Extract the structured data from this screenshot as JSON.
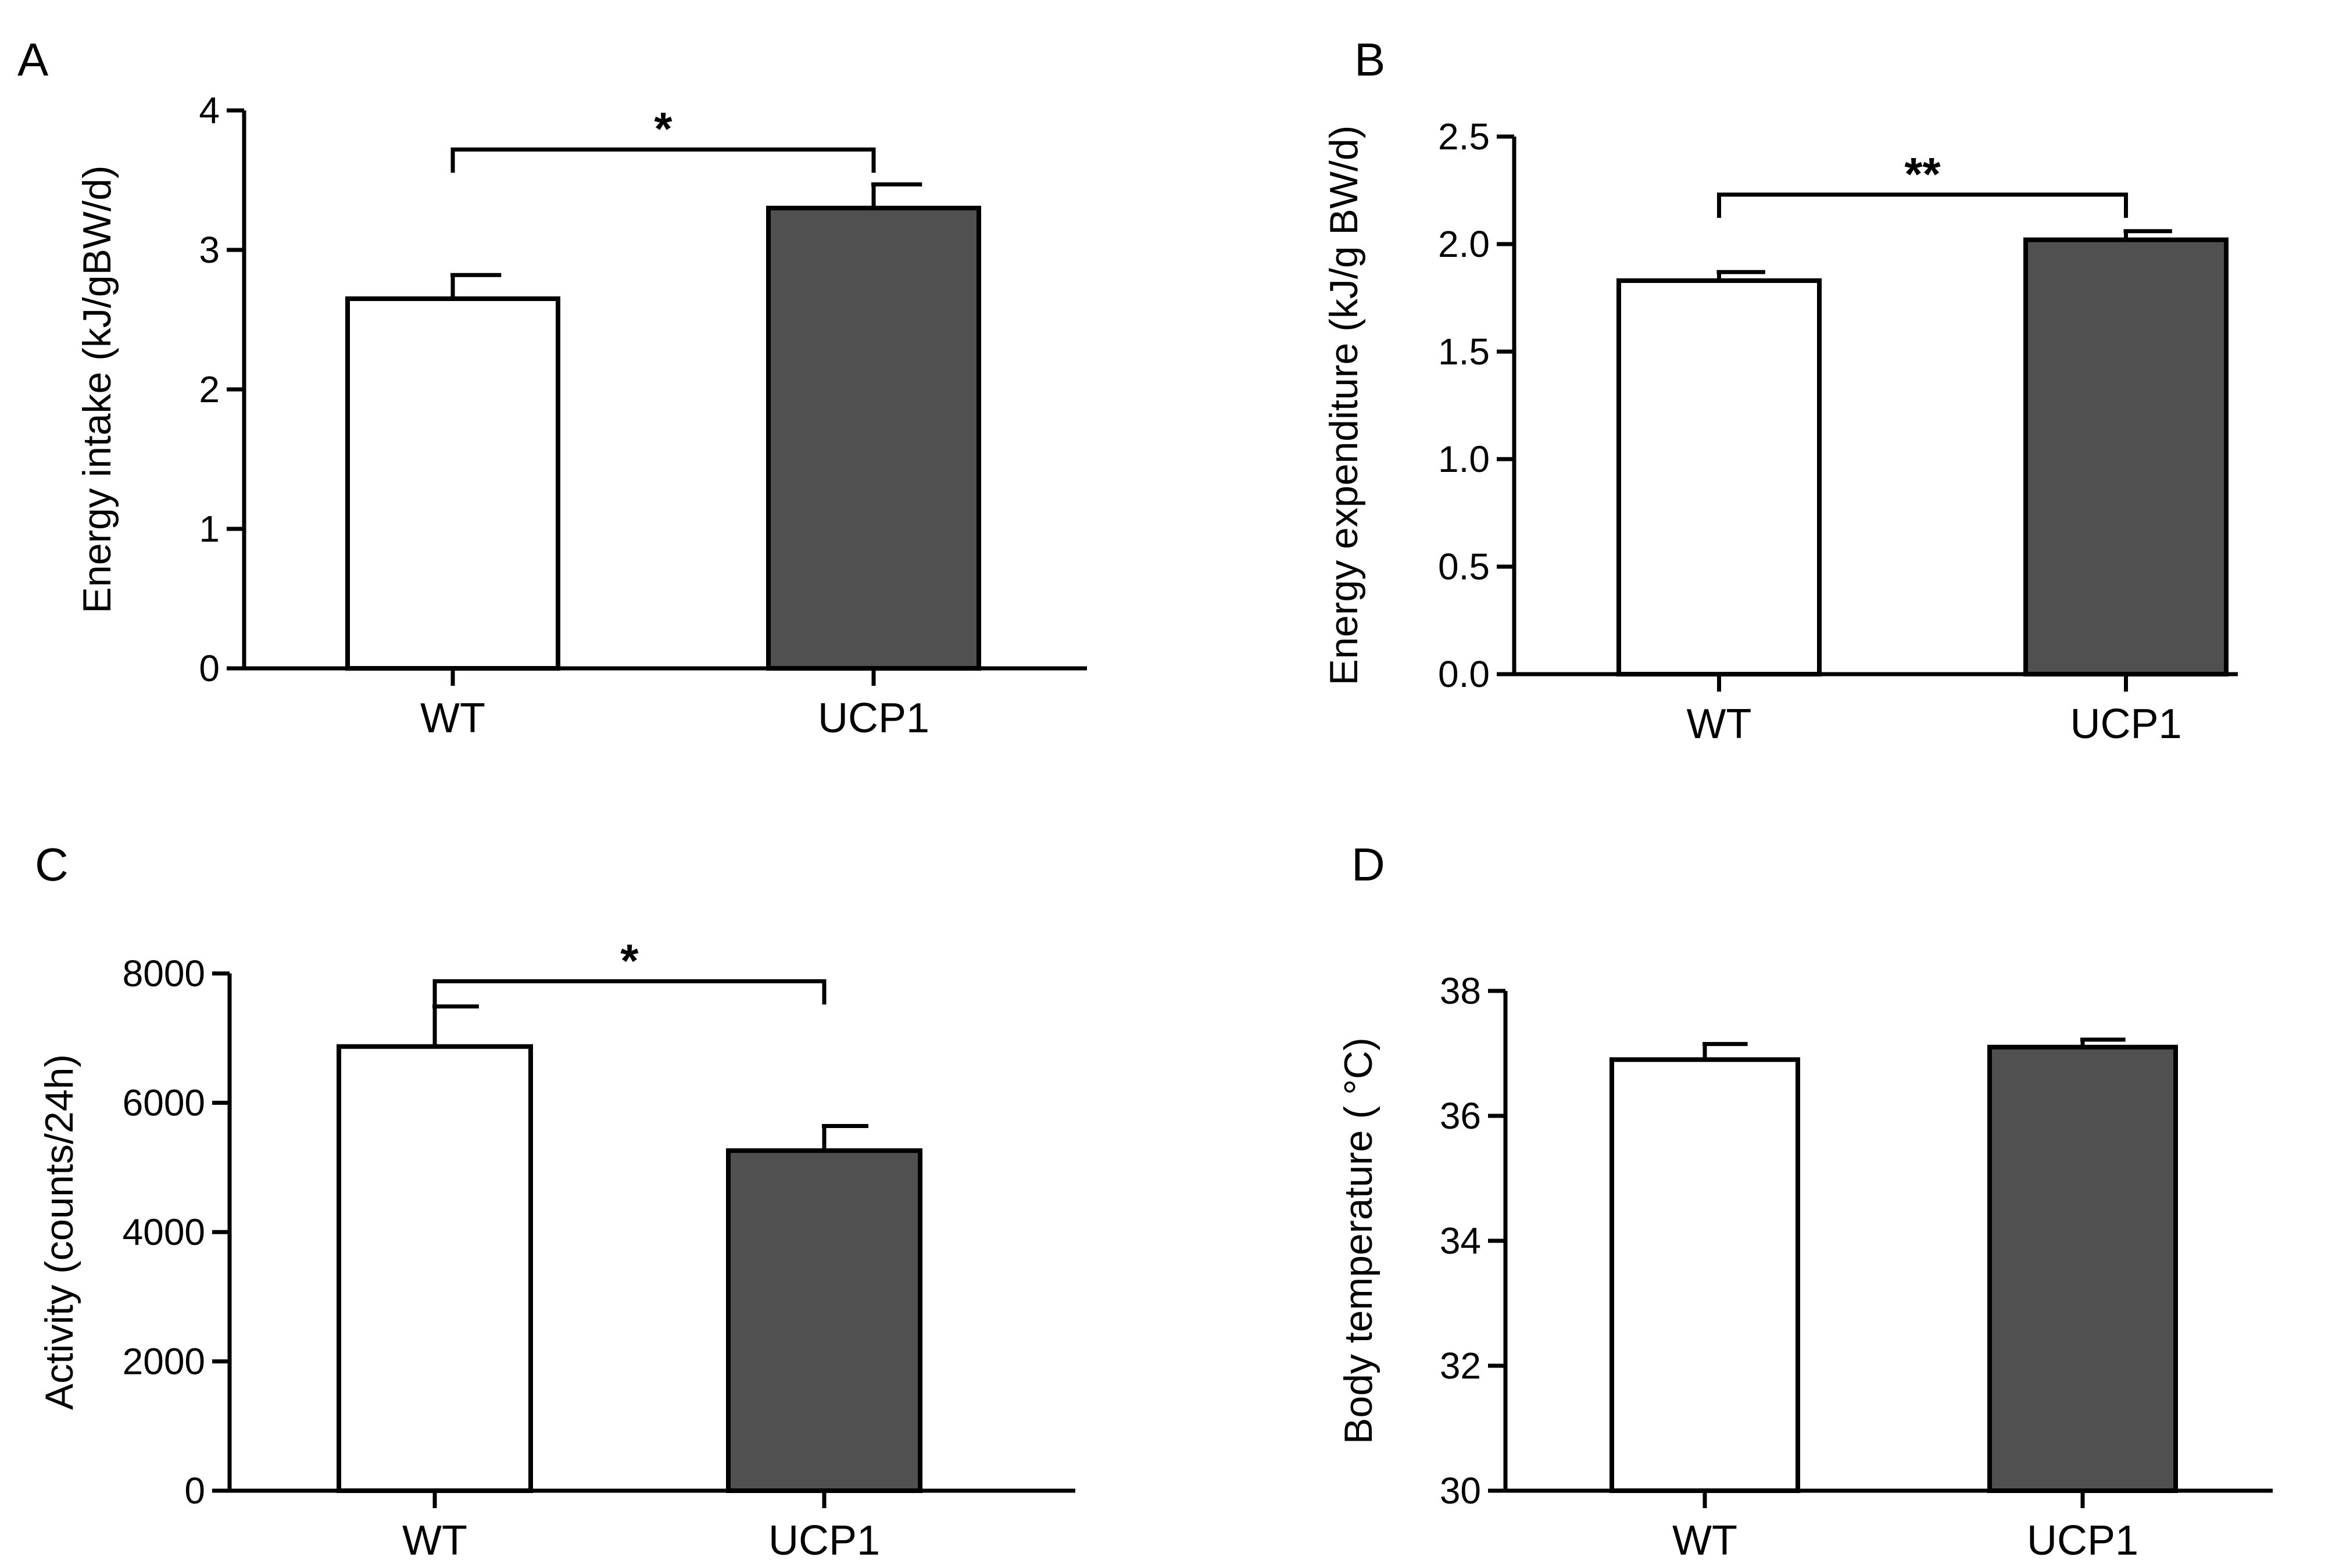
{
  "colors": {
    "wt_fill": "#ffffff",
    "ucp1_fill": "#505050",
    "outline": "#000000"
  },
  "chart_data": [
    {
      "panel": "A",
      "type": "bar",
      "categories": [
        "WT",
        "UCP1"
      ],
      "values": [
        2.65,
        3.3
      ],
      "errors": [
        0.17,
        0.17
      ],
      "ylabel": "Energy intake (kJ/gBW/d)",
      "ylim": [
        0,
        4
      ],
      "yticks": [
        0,
        1,
        2,
        3,
        4
      ],
      "ytick_labels": [
        "0",
        "1",
        "2",
        "3",
        "4"
      ],
      "significance": "*",
      "significance_y": 3.72
    },
    {
      "panel": "B",
      "type": "bar",
      "categories": [
        "WT",
        "UCP1"
      ],
      "values": [
        1.83,
        2.02
      ],
      "errors": [
        0.04,
        0.04
      ],
      "ylabel": "Energy expenditure (kJ/g BW/d)",
      "ylim": [
        0,
        2.5
      ],
      "yticks": [
        0,
        0.5,
        1,
        1.5,
        2,
        2.5
      ],
      "ytick_labels": [
        "0.0",
        "0.5",
        "1.0",
        "1.5",
        "2.0",
        "2.5"
      ],
      "significance": "**",
      "significance_y": 2.23
    },
    {
      "panel": "C",
      "type": "bar",
      "categories": [
        "WT",
        "UCP1"
      ],
      "values": [
        6870,
        5260
      ],
      "errors": [
        620,
        380
      ],
      "ylabel": "Activity (counts/24h)",
      "ylim": [
        0,
        8000
      ],
      "yticks": [
        0,
        2000,
        4000,
        6000,
        8000
      ],
      "ytick_labels": [
        "0",
        "2000",
        "4000",
        "6000",
        "8000"
      ],
      "significance": "*",
      "significance_y": 7880
    },
    {
      "panel": "D",
      "type": "bar",
      "categories": [
        "WT",
        "UCP1"
      ],
      "values": [
        36.9,
        37.1
      ],
      "errors": [
        0.25,
        0.12
      ],
      "ylabel": "Body temperature ( °C)",
      "ylim": [
        30,
        38
      ],
      "yticks": [
        30,
        32,
        34,
        36,
        38
      ],
      "ytick_labels": [
        "30",
        "32",
        "34",
        "36",
        "38"
      ],
      "significance": "",
      "significance_y": null
    }
  ]
}
